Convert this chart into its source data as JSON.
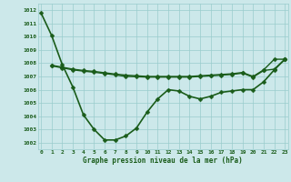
{
  "title": "Graphe pression niveau de la mer (hPa)",
  "bg_color": "#cce8ea",
  "grid_color": "#99cccc",
  "line_color": "#1a5c1a",
  "xlim": [
    -0.3,
    23.3
  ],
  "ylim": [
    1001.5,
    1012.5
  ],
  "xticks": [
    0,
    1,
    2,
    3,
    4,
    5,
    6,
    7,
    8,
    9,
    10,
    11,
    12,
    13,
    14,
    15,
    16,
    17,
    18,
    19,
    20,
    21,
    22,
    23
  ],
  "yticks": [
    1002,
    1003,
    1004,
    1005,
    1006,
    1007,
    1008,
    1009,
    1010,
    1011,
    1012
  ],
  "series": [
    {
      "x": [
        0,
        1,
        2,
        3,
        4,
        5,
        6,
        7,
        8,
        9,
        10,
        11,
        12,
        13,
        14,
        15,
        16,
        17,
        18,
        19,
        20,
        21,
        22,
        23
      ],
      "y": [
        1011.8,
        1010.1,
        1007.9,
        1006.2,
        1004.1,
        1003.0,
        1002.2,
        1002.2,
        1002.5,
        1003.1,
        1004.3,
        1005.3,
        1006.0,
        1005.9,
        1005.5,
        1005.3,
        1005.5,
        1005.8,
        1005.9,
        1006.0,
        1006.0,
        1006.6,
        1007.5,
        1008.3
      ],
      "marker": "D",
      "markersize": 2.5,
      "linewidth": 1.2
    },
    {
      "x": [
        1,
        2,
        3,
        4,
        5,
        6,
        7,
        8,
        9,
        10,
        11,
        12,
        13,
        14,
        15,
        16,
        17,
        18,
        19,
        20,
        21,
        22,
        23
      ],
      "y": [
        1007.85,
        1007.7,
        1007.55,
        1007.45,
        1007.38,
        1007.28,
        1007.18,
        1007.1,
        1007.05,
        1007.0,
        1007.0,
        1007.0,
        1007.0,
        1007.0,
        1007.05,
        1007.1,
        1007.15,
        1007.2,
        1007.3,
        1007.0,
        1007.5,
        1008.3,
        1008.3
      ],
      "marker": "D",
      "markersize": 2.5,
      "linewidth": 1.0
    },
    {
      "x": [
        1,
        2,
        3,
        4,
        5,
        6,
        7,
        8,
        9,
        10,
        11,
        12,
        13,
        14,
        15,
        16,
        17,
        18,
        19,
        20,
        21,
        22,
        23
      ],
      "y": [
        1007.8,
        1007.65,
        1007.5,
        1007.4,
        1007.32,
        1007.22,
        1007.12,
        1007.0,
        1006.98,
        1006.95,
        1006.95,
        1006.95,
        1006.95,
        1006.95,
        1007.0,
        1007.05,
        1007.1,
        1007.15,
        1007.25,
        1006.95,
        1007.45,
        1007.55,
        1008.3
      ],
      "marker": "D",
      "markersize": 2.5,
      "linewidth": 1.0
    }
  ]
}
